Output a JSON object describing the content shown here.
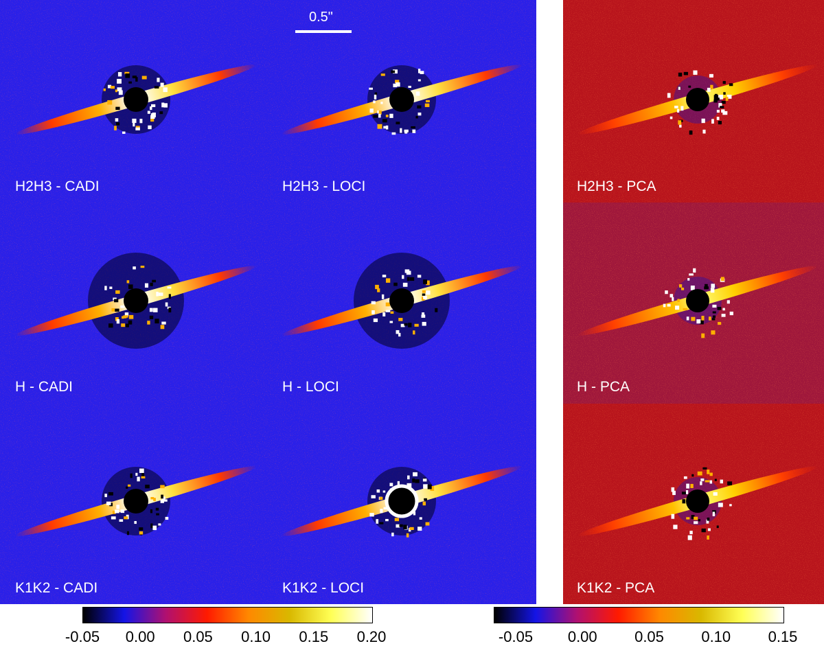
{
  "scale_bar": {
    "label": "0.5\""
  },
  "left_panels": {
    "row1_col1": "H2H3 - CADI",
    "row1_col2": "H2H3 - LOCI",
    "row2_col1": "H - CADI",
    "row2_col2": "H - LOCI",
    "row3_col1": "K1K2 - CADI",
    "row3_col2": "K1K2 - LOCI"
  },
  "right_panels": {
    "row1": "H2H3 - PCA",
    "row2": "H - PCA",
    "row3": "K1K2 - PCA"
  },
  "colorbar_left": {
    "ticks": [
      "-0.05",
      "0.00",
      "0.05",
      "0.10",
      "0.15",
      "0.20"
    ],
    "colors": [
      "#000000",
      "#1414e6",
      "#b01070",
      "#ff1a00",
      "#ff8800",
      "#d9b800",
      "#ffff55",
      "#ffffff"
    ]
  },
  "colorbar_right": {
    "ticks": [
      "-0.05",
      "0.00",
      "0.05",
      "0.10",
      "0.15"
    ],
    "colors": [
      "#000000",
      "#1414e6",
      "#b01070",
      "#ff1a00",
      "#ff8800",
      "#d9b800",
      "#ffff55",
      "#ffffff"
    ]
  },
  "colors": {
    "left_background": "#2a20e8",
    "right_background": "#b8141c"
  }
}
